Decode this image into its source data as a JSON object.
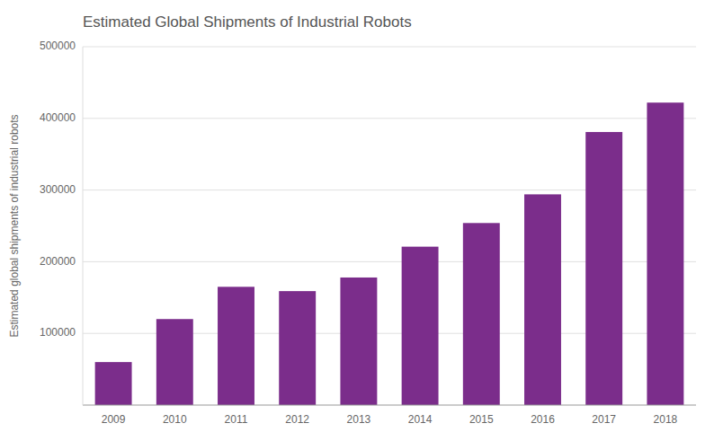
{
  "chart_data": {
    "type": "bar",
    "title": "Estimated Global Shipments of Industrial Robots",
    "ylabel": "Estimated global shipments of industrial robots",
    "categories": [
      "2009",
      "2010",
      "2011",
      "2012",
      "2013",
      "2014",
      "2015",
      "2016",
      "2017",
      "2018"
    ],
    "values": [
      60000,
      120000,
      165000,
      159000,
      178000,
      221000,
      254000,
      294000,
      381000,
      422000
    ],
    "color": "#7b2d8b",
    "ylim": [
      0,
      500000
    ],
    "yticks": [
      100000,
      200000,
      300000,
      400000,
      500000
    ],
    "grid": true
  }
}
